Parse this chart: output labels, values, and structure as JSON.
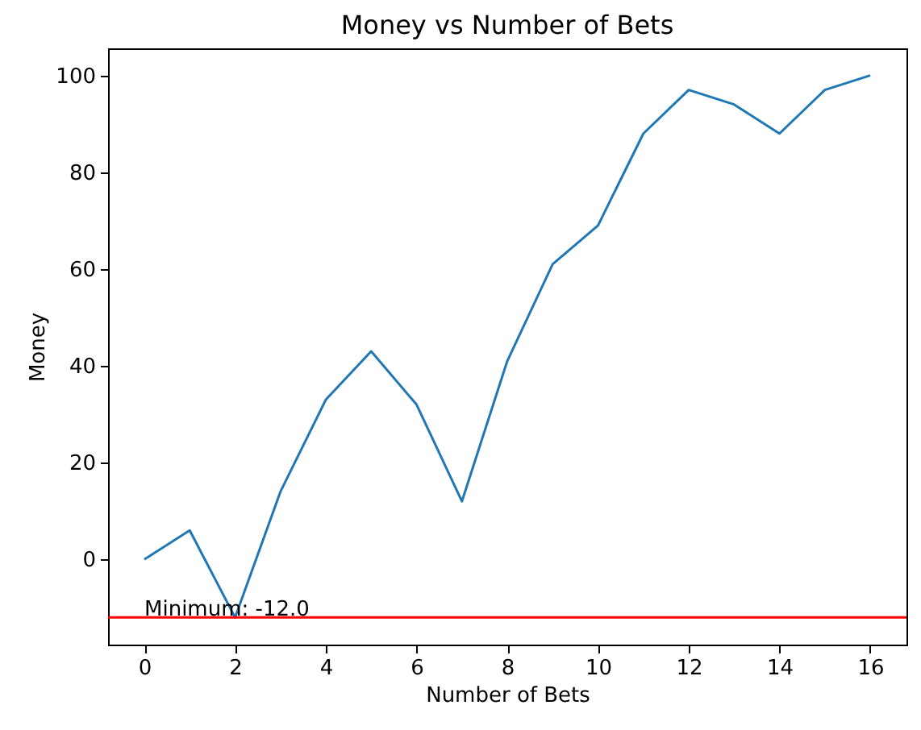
{
  "chart_data": {
    "type": "line",
    "title": "Money vs Number of Bets",
    "xlabel": "Number of Bets",
    "ylabel": "Money",
    "x": [
      0,
      1,
      2,
      3,
      4,
      5,
      6,
      7,
      8,
      9,
      10,
      11,
      12,
      13,
      14,
      15,
      16
    ],
    "series": [
      {
        "color": "#1f77b4",
        "values": [
          0,
          6,
          -12,
          14,
          33,
          43,
          32,
          12,
          41,
          61,
          69,
          88,
          97,
          94,
          88,
          97,
          100
        ]
      }
    ],
    "xlim": [
      -0.8,
      16.8
    ],
    "ylim": [
      -17.6,
      105.6
    ],
    "xticks": [
      0,
      2,
      4,
      6,
      8,
      10,
      12,
      14,
      16
    ],
    "yticks": [
      0,
      20,
      40,
      60,
      80,
      100
    ],
    "ref_lines": [
      {
        "axis": "y",
        "value": -12,
        "color": "#ff0000"
      }
    ],
    "annotations": [
      {
        "text": "Minimum: -12.0",
        "x": 0,
        "y": -12
      }
    ],
    "grid": false,
    "marker": "none",
    "line_style": "solid"
  }
}
